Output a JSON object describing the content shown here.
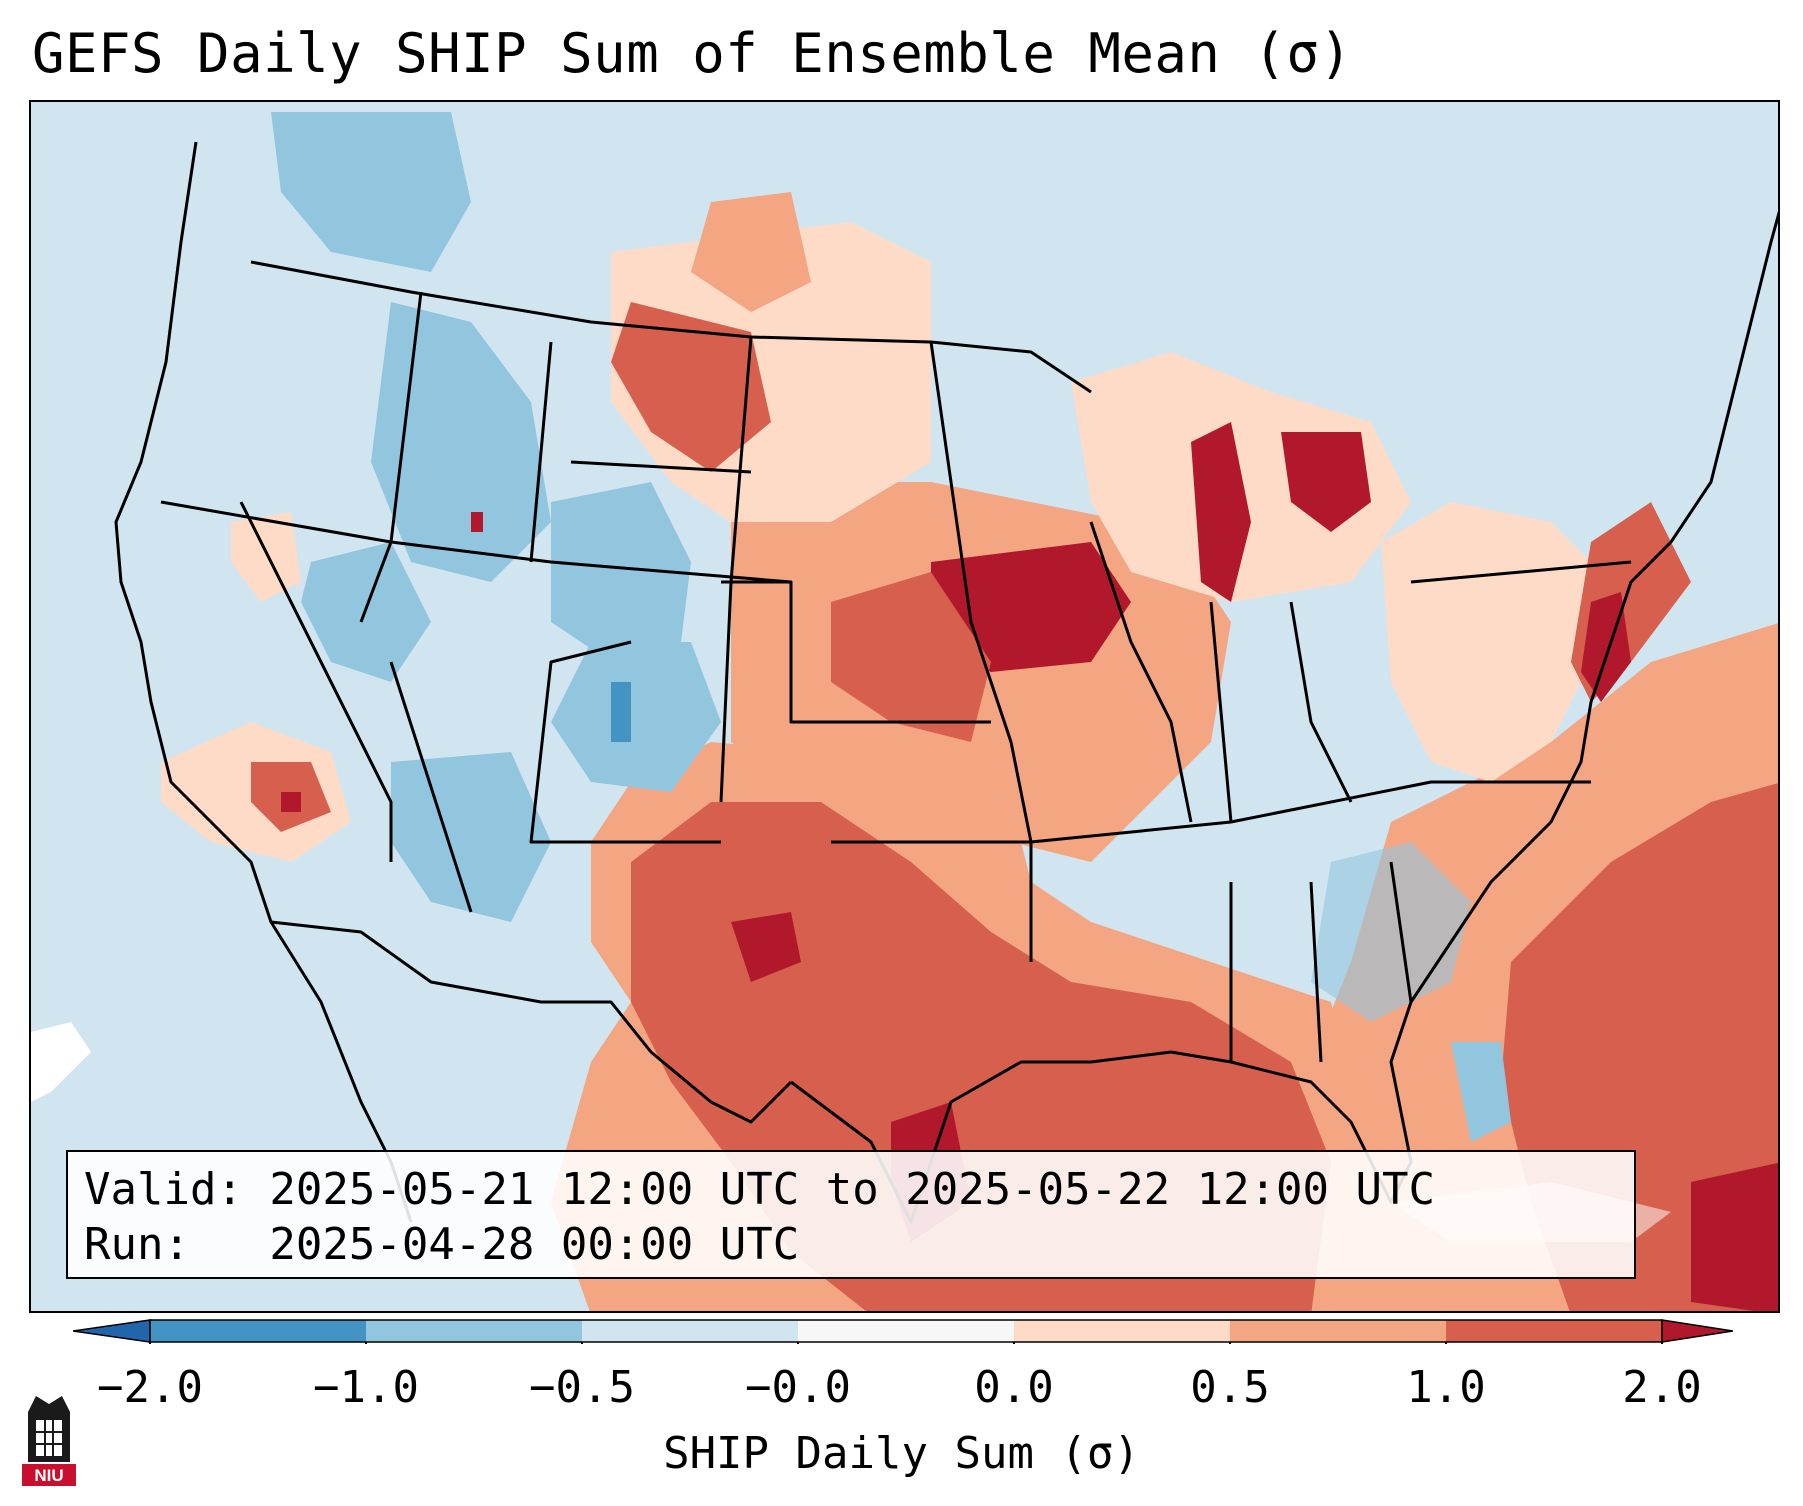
{
  "title": "GEFS Daily SHIP Sum of Ensemble Mean (σ)",
  "map": {
    "region": "Continental United States",
    "ocean_color": "#d1e5f0",
    "land_base_color": "#d1e5f0"
  },
  "info_box": {
    "valid_line": "Valid: 2025-05-21 12:00 UTC to 2025-05-22 12:00 UTC",
    "run_line": "Run:   2025-04-28 00:00 UTC"
  },
  "colorbar": {
    "label": "SHIP Daily Sum (σ)",
    "ticks": [
      "−2.0",
      "−1.0",
      "−0.5",
      "−0.0",
      "0.0",
      "0.5",
      "1.0",
      "2.0"
    ],
    "colors": {
      "under": "#2166ac",
      "bin_neg2_neg1": "#4393c3",
      "bin_neg1_neg05": "#92c5de",
      "bin_neg05_0": "#d1e5f0",
      "bin_0": "#f7f7f7",
      "bin_0_05": "#fddbc7",
      "bin_05_1": "#f4a582",
      "bin_1_2": "#d6604d",
      "over": "#b2182b"
    }
  },
  "logo": {
    "text": "NIU",
    "icon": "university-tower-icon"
  }
}
